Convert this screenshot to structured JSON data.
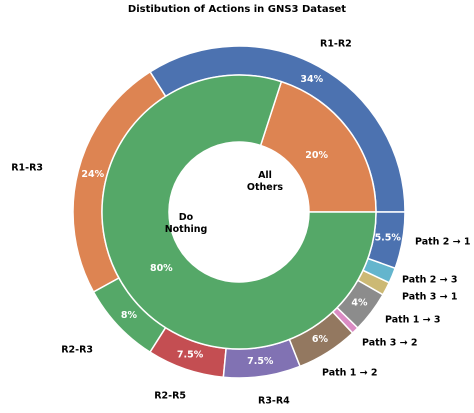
{
  "chart_data": {
    "type": "pie",
    "title": "Distibution of Actions in GNS3 Dataset",
    "rings": [
      {
        "categories": [
          "R1-R2",
          "R1-R3",
          "R2-R3",
          "R2-R5",
          "R3-R4",
          "Path 1 → 2",
          "Path 3 → 2",
          "Path 1 → 3",
          "Path 3 → 1",
          "Path 2 → 3",
          "Path 2 → 1"
        ],
        "values": [
          34,
          24,
          8,
          7.5,
          7.5,
          6,
          0.7,
          4,
          1.3,
          1.5,
          5.5
        ],
        "value_labels": [
          "34%",
          "24%",
          "8%",
          "7.5%",
          "7.5%",
          "6%",
          null,
          "4%",
          null,
          null,
          "5.5%"
        ],
        "colors": [
          "#4c72b0",
          "#dd8452",
          "#55a868",
          "#c44e52",
          "#8172b3",
          "#937860",
          "#da8bc3",
          "#8c8c8c",
          "#ccb974",
          "#64b5cd",
          "#4c72b0"
        ]
      },
      {
        "categories": [
          "All Others",
          "Do Nothing"
        ],
        "values": [
          20,
          80
        ],
        "value_labels": [
          "20%",
          "80%"
        ],
        "colors": [
          "#dd8452",
          "#55a868"
        ]
      }
    ]
  }
}
